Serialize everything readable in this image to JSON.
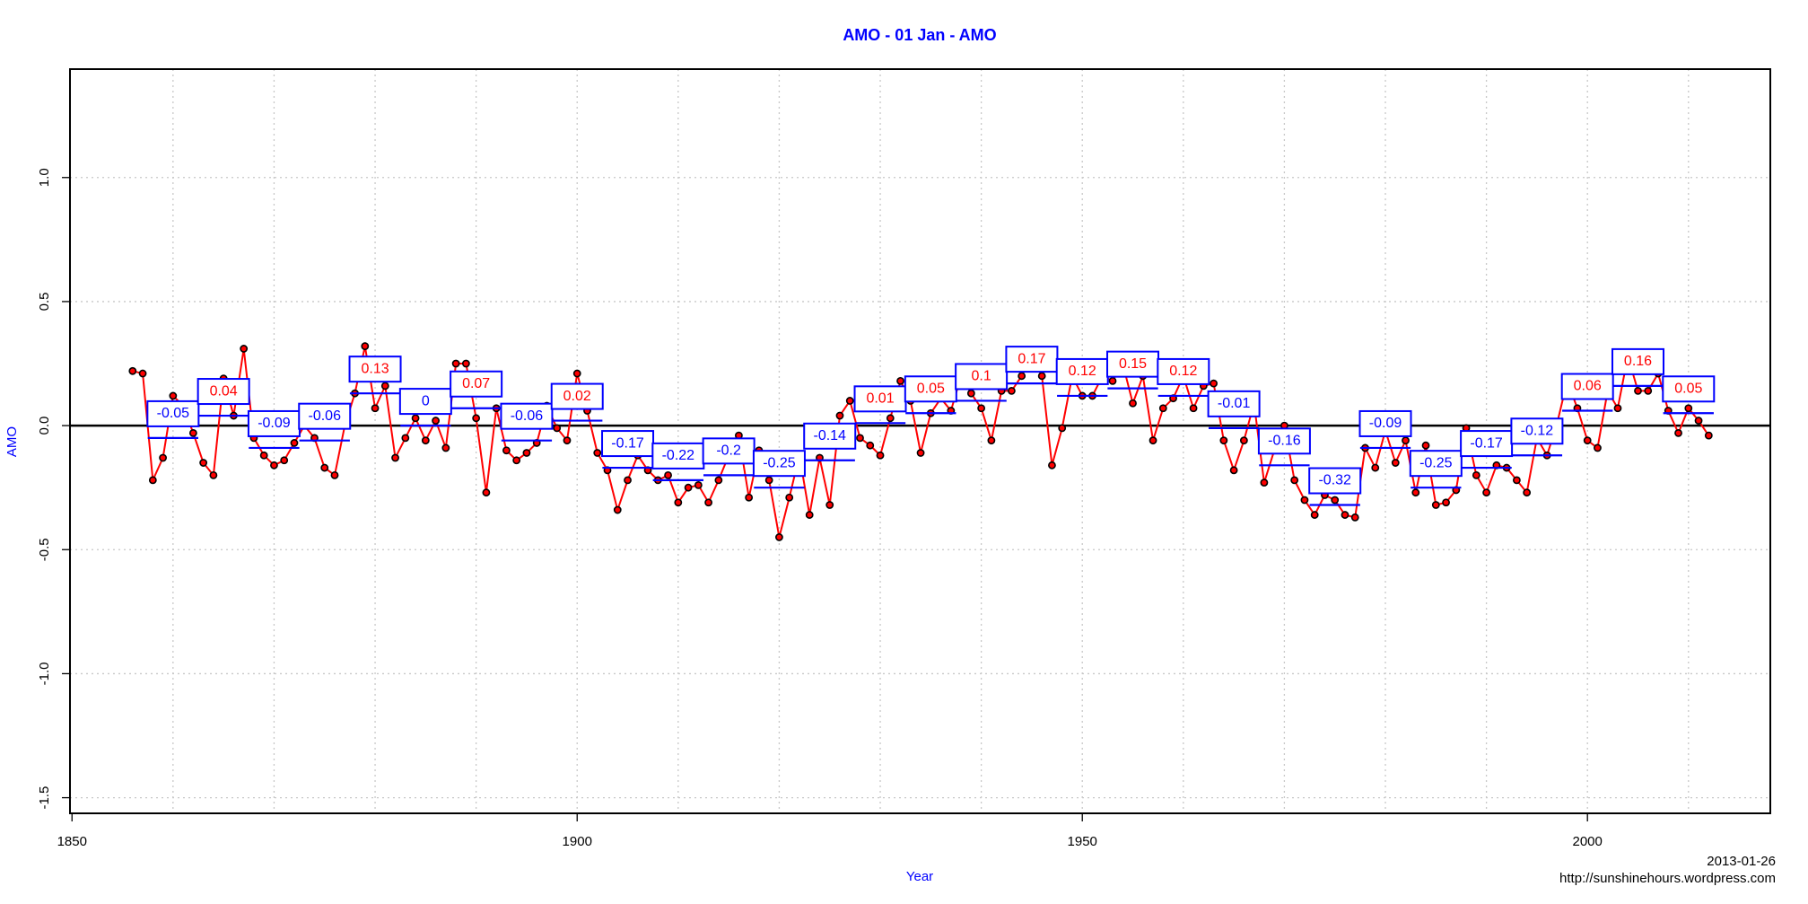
{
  "chart_data": {
    "type": "line",
    "title": "AMO - 01 Jan - AMO",
    "title_color": "#0000ff",
    "xlabel": "Year",
    "ylabel": "AMO",
    "axis_label_color": "#0000ff",
    "xlim": [
      1849.8,
      2018.1
    ],
    "ylim": [
      -1.563,
      1.437
    ],
    "xticks": [
      1850,
      1900,
      1950,
      2000
    ],
    "yticks": [
      -1.5,
      {
        "value": -1,
        "label": "-1.0"
      },
      -0.5,
      {
        "value": 0,
        "label": "0.0"
      },
      0.5,
      {
        "value": 1,
        "label": "1.0"
      }
    ],
    "xgrid": [
      1860,
      1870,
      1880,
      1890,
      1900,
      1910,
      1920,
      1930,
      1940,
      1950,
      1960,
      1970,
      1980,
      1990,
      2000,
      2010
    ],
    "grid": true,
    "hline": 0,
    "series": [
      {
        "color": "#ff0000",
        "marker_color": "#000000",
        "x": [
          1856,
          1857,
          1858,
          1859,
          1860,
          1861,
          1862,
          1863,
          1864,
          1865,
          1866,
          1867,
          1868,
          1869,
          1870,
          1871,
          1872,
          1873,
          1874,
          1875,
          1876,
          1877,
          1878,
          1879,
          1880,
          1881,
          1882,
          1883,
          1884,
          1885,
          1886,
          1887,
          1888,
          1889,
          1890,
          1891,
          1892,
          1893,
          1894,
          1895,
          1896,
          1897,
          1898,
          1899,
          1900,
          1901,
          1902,
          1903,
          1904,
          1905,
          1906,
          1907,
          1908,
          1909,
          1910,
          1911,
          1912,
          1913,
          1914,
          1915,
          1916,
          1917,
          1918,
          1919,
          1920,
          1921,
          1922,
          1923,
          1924,
          1925,
          1926,
          1927,
          1928,
          1929,
          1930,
          1931,
          1932,
          1933,
          1934,
          1935,
          1936,
          1937,
          1938,
          1939,
          1940,
          1941,
          1942,
          1943,
          1944,
          1945,
          1946,
          1947,
          1948,
          1949,
          1950,
          1951,
          1952,
          1953,
          1954,
          1955,
          1956,
          1957,
          1958,
          1959,
          1960,
          1961,
          1962,
          1963,
          1964,
          1965,
          1966,
          1967,
          1968,
          1969,
          1970,
          1971,
          1972,
          1973,
          1974,
          1975,
          1976,
          1977,
          1978,
          1979,
          1980,
          1981,
          1982,
          1983,
          1984,
          1985,
          1986,
          1987,
          1988,
          1989,
          1990,
          1991,
          1992,
          1993,
          1994,
          1995,
          1996,
          1997,
          1998,
          1999,
          2000,
          2001,
          2002,
          2003,
          2004,
          2005,
          2006,
          2007,
          2008,
          2009,
          2010,
          2011,
          2012
        ],
        "values": [
          0.22,
          0.21,
          -0.22,
          -0.13,
          0.12,
          0.08,
          -0.03,
          -0.15,
          -0.2,
          0.19,
          0.04,
          0.31,
          -0.05,
          -0.12,
          -0.16,
          -0.14,
          -0.07,
          0,
          -0.05,
          -0.17,
          -0.2,
          0,
          0.13,
          0.32,
          0.07,
          0.16,
          -0.13,
          -0.05,
          0.03,
          -0.06,
          0.02,
          -0.09,
          0.25,
          0.25,
          0.03,
          -0.27,
          0.07,
          -0.1,
          -0.14,
          -0.11,
          -0.07,
          0.08,
          -0.01,
          -0.06,
          0.21,
          0.06,
          -0.11,
          -0.18,
          -0.34,
          -0.22,
          -0.12,
          -0.18,
          -0.22,
          -0.2,
          -0.31,
          -0.25,
          -0.24,
          -0.31,
          -0.22,
          -0.12,
          -0.04,
          -0.29,
          -0.1,
          -0.22,
          -0.45,
          -0.29,
          -0.12,
          -0.36,
          -0.13,
          -0.32,
          0.04,
          0.1,
          -0.05,
          -0.08,
          -0.12,
          0.03,
          0.18,
          0.1,
          -0.11,
          0.05,
          0.11,
          0.06,
          0.2,
          0.13,
          0.07,
          -0.06,
          0.14,
          0.14,
          0.2,
          0.28,
          0.2,
          -0.16,
          -0.01,
          0.2,
          0.12,
          0.12,
          0.2,
          0.18,
          0.25,
          0.09,
          0.2,
          -0.06,
          0.07,
          0.11,
          0.2,
          0.07,
          0.16,
          0.17,
          -0.06,
          -0.18,
          -0.06,
          0.09,
          -0.23,
          -0.1,
          0,
          -0.22,
          -0.3,
          -0.36,
          -0.28,
          -0.3,
          -0.36,
          -0.37,
          -0.09,
          -0.17,
          -0.02,
          -0.15,
          -0.06,
          -0.27,
          -0.08,
          -0.32,
          -0.31,
          -0.26,
          -0.01,
          -0.2,
          -0.27,
          -0.16,
          -0.17,
          -0.22,
          -0.27,
          -0.05,
          -0.12,
          0.01,
          0.18,
          0.07,
          -0.06,
          -0.09,
          0.14,
          0.07,
          0.28,
          0.14,
          0.14,
          0.21,
          0.06,
          -0.03,
          0.07,
          0.02,
          -0.04
        ]
      }
    ],
    "means": {
      "color": "#0000ff",
      "positive_label_color": "#ff0000",
      "negative_label_color": "#0000ff",
      "bins": [
        1857.5,
        1862.5,
        1867.5,
        1872.5,
        1877.5,
        1882.5,
        1887.5,
        1892.5,
        1897.5,
        1902.5,
        1907.5,
        1912.5,
        1917.5,
        1922.5,
        1927.5,
        1932.5,
        1937.5,
        1942.5,
        1947.5,
        1952.5,
        1957.5,
        1962.5,
        1967.5,
        1972.5,
        1977.5,
        1982.5,
        1987.5,
        1992.5,
        1997.5,
        2002.5,
        2007.5,
        2012.5
      ],
      "values": [
        -0.05,
        0.04,
        -0.09,
        -0.06,
        0.13,
        0,
        0.07,
        -0.06,
        0.02,
        -0.17,
        -0.22,
        -0.2,
        -0.25,
        -0.14,
        0.01,
        0.05,
        0.1,
        0.17,
        0.12,
        0.15,
        0.12,
        -0.01,
        -0.16,
        -0.32,
        -0.09,
        -0.25,
        -0.17,
        -0.12,
        0.06,
        0.16,
        0.05
      ]
    },
    "footer": {
      "date": "2013-01-26",
      "url": "http://sunshinehours.wordpress.com"
    }
  }
}
